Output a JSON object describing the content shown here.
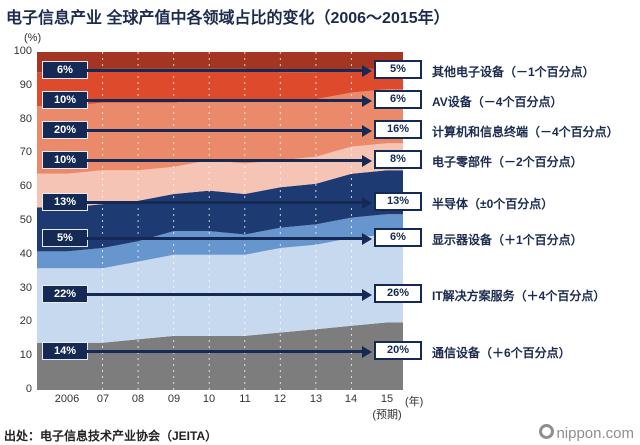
{
  "title": "电子信息产业 全球产值中各领域占比的变化（2006～2015年）",
  "y_axis_unit": "(%)",
  "source": "出处：电子信息技术产业协会（JEITA）",
  "brand": "nippon.com",
  "rows": [
    {
      "start": "6%",
      "end": "5%",
      "label": "其他电子设备（－1个百分点）"
    },
    {
      "start": "10%",
      "end": "6%",
      "label": "AV设备（－4个百分点）"
    },
    {
      "start": "20%",
      "end": "16%",
      "label": "计算机和信息终端（－4个百分点）"
    },
    {
      "start": "10%",
      "end": "8%",
      "label": "电子零部件（－2个百分点）"
    },
    {
      "start": "13%",
      "end": "13%",
      "label": "半导体（±0个百分点）"
    },
    {
      "start": "5%",
      "end": "6%",
      "label": "显示器设备（＋1个百分点）"
    },
    {
      "start": "22%",
      "end": "26%",
      "label": "IT解决方案服务（＋4个百分点）"
    },
    {
      "start": "14%",
      "end": "20%",
      "label": "通信设备（＋6个百分点）"
    }
  ],
  "chart_data": {
    "type": "area",
    "stacked": true,
    "title": "电子信息产业 全球产值中各领域占比的变化（2006～2015年）",
    "x_labels": [
      "2006",
      "07",
      "08",
      "09",
      "10",
      "11",
      "12",
      "13",
      "14",
      "15"
    ],
    "x_note": "(预期)",
    "x_unit": "(年)",
    "y_ticks": [
      100,
      90,
      80,
      70,
      60,
      50,
      40,
      30,
      20,
      10,
      0
    ],
    "ylim": [
      0,
      100
    ],
    "grid": "dashed-vertical-white",
    "legend_position": "right",
    "series_bottom_up": [
      {
        "name": "通信设备",
        "color": "#7d7d7d",
        "values": [
          14,
          14,
          15,
          16,
          16,
          16,
          17,
          18,
          19,
          20
        ]
      },
      {
        "name": "IT解决方案服务",
        "color": "#c7d9ef",
        "values": [
          22,
          22,
          23,
          24,
          24,
          24,
          25,
          25,
          26,
          26
        ]
      },
      {
        "name": "显示器设备",
        "color": "#6795cd",
        "values": [
          5,
          6,
          6,
          7,
          7,
          6,
          6,
          6,
          6,
          6
        ]
      },
      {
        "name": "半导体",
        "color": "#1e3a72",
        "values": [
          13,
          13,
          12,
          11,
          12,
          12,
          12,
          12,
          13,
          13
        ]
      },
      {
        "name": "电子零部件",
        "color": "#f6c4b4",
        "values": [
          10,
          10,
          9,
          8,
          9,
          9,
          8,
          8,
          8,
          8
        ]
      },
      {
        "name": "计算机和信息终端",
        "color": "#eb8a6a",
        "values": [
          20,
          20,
          20,
          19,
          18,
          19,
          18,
          17,
          16,
          16
        ]
      },
      {
        "name": "AV设备",
        "color": "#dd4b2c",
        "values": [
          10,
          10,
          10,
          10,
          9,
          9,
          8,
          8,
          7,
          6
        ]
      },
      {
        "name": "其他电子设备",
        "color": "#a43522",
        "values": [
          6,
          5,
          5,
          5,
          5,
          5,
          6,
          6,
          5,
          5
        ]
      }
    ]
  }
}
